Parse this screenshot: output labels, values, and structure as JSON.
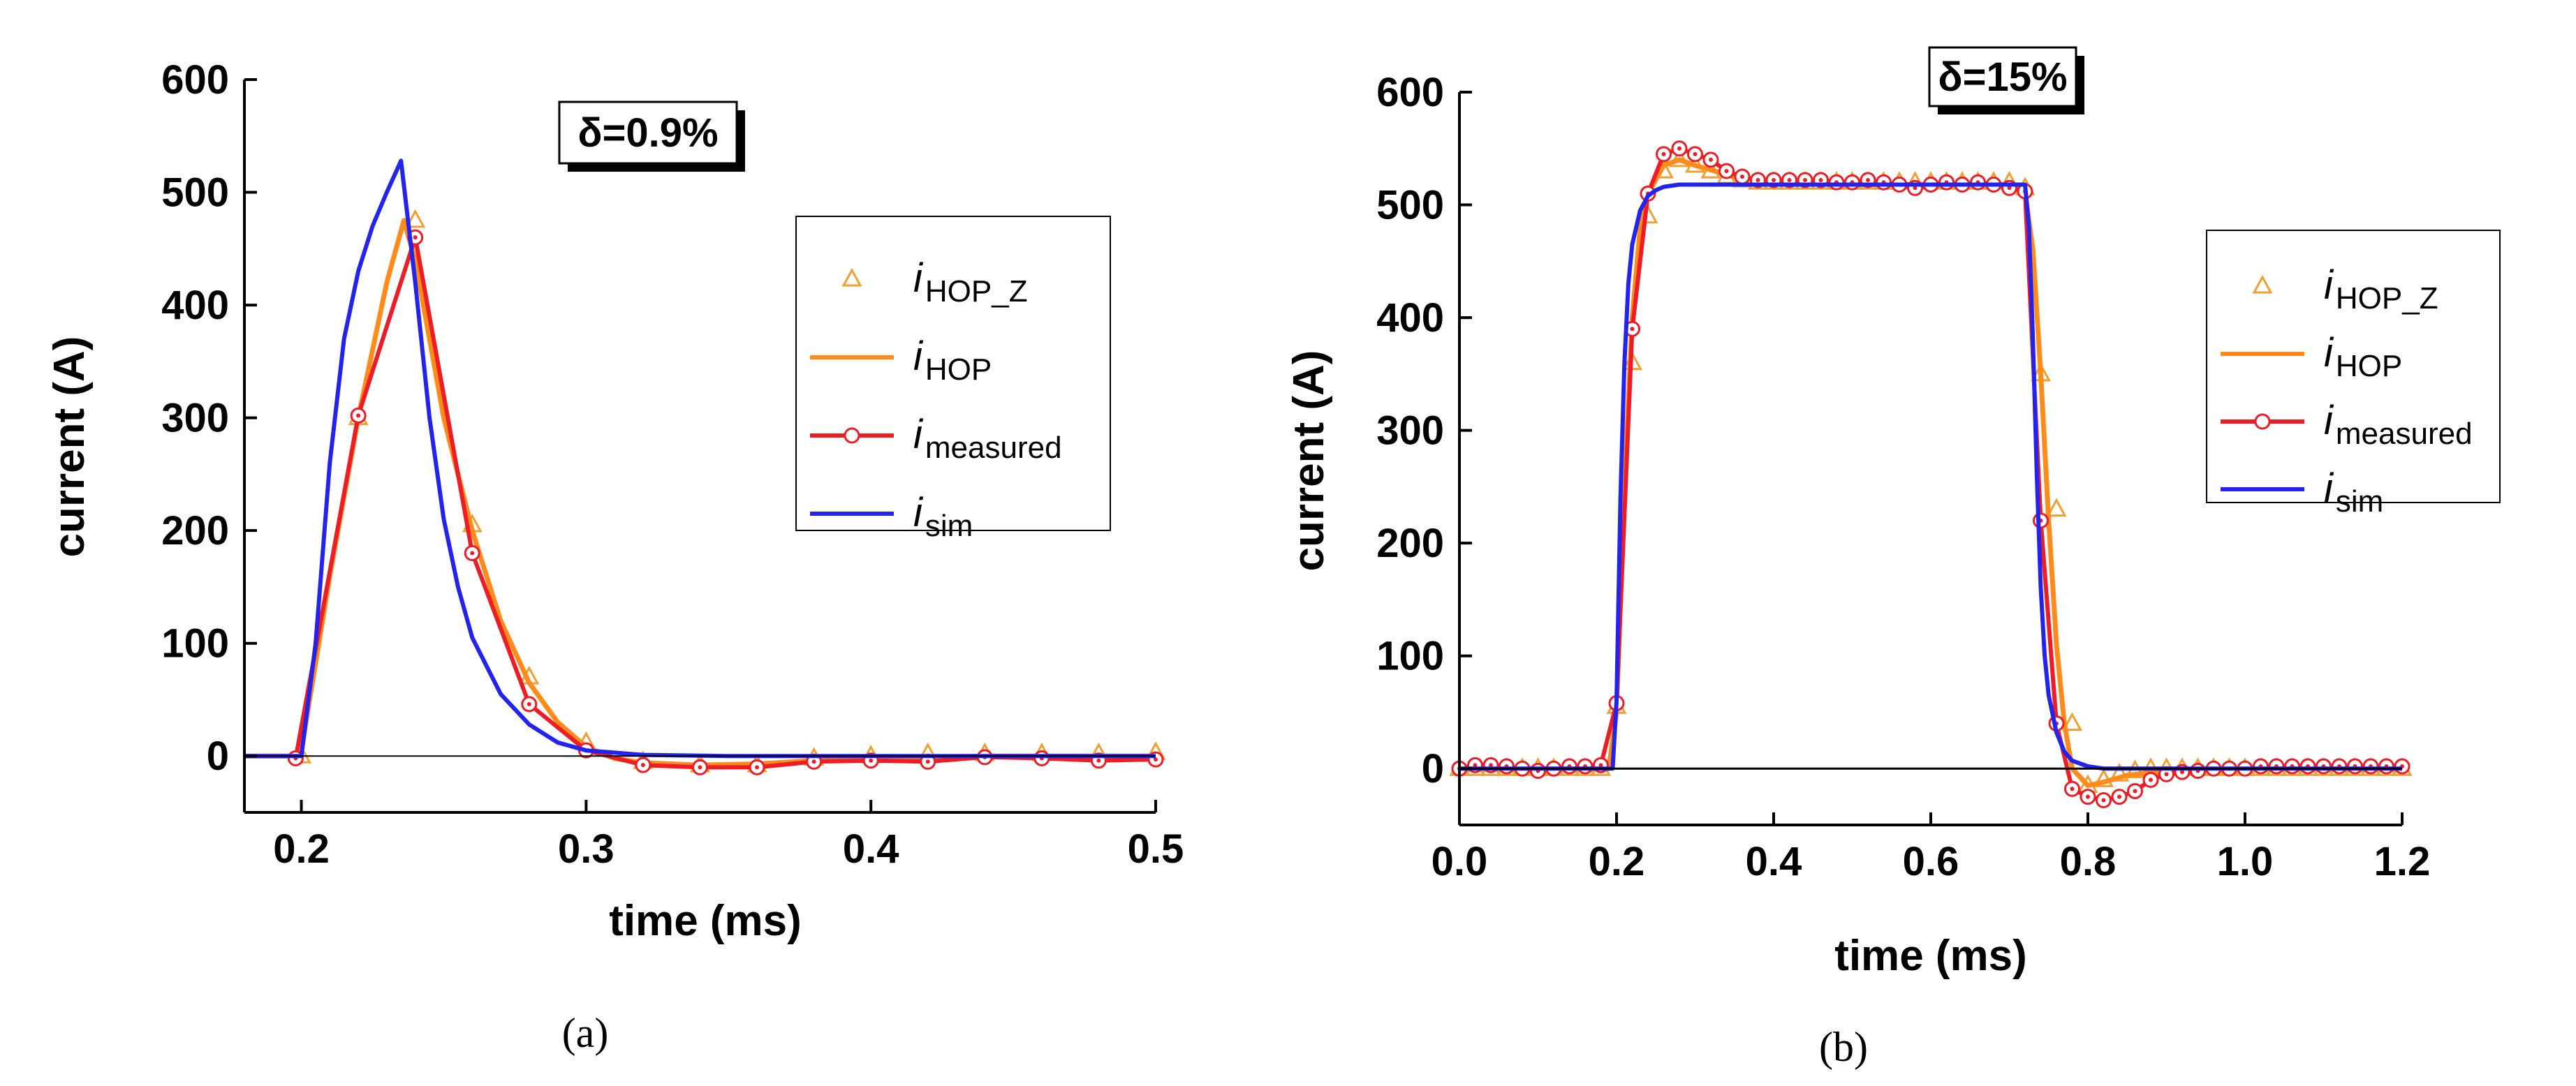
{
  "colors": {
    "hop_z": "#f0a030",
    "hop": "#ff8c1a",
    "measured": "#ee1c24",
    "sim": "#2323ee",
    "axis": "#000000"
  },
  "chart_data": [
    {
      "type": "line",
      "caption": "(a)",
      "annotation": "δ=0.9%",
      "xlabel": "time (ms)",
      "ylabel": "current (A)",
      "xlim": [
        0.18,
        0.5
      ],
      "ylim": [
        -50,
        600
      ],
      "xticks": [
        0.2,
        0.3,
        0.4,
        0.5
      ],
      "xtick_labels": [
        "0.2",
        "0.3",
        "0.4",
        "0.5"
      ],
      "yticks": [
        0,
        100,
        200,
        300,
        400,
        500,
        600
      ],
      "ytick_labels": [
        "0",
        "100",
        "200",
        "300",
        "400",
        "500",
        "600"
      ],
      "legend_position": "right",
      "series": [
        {
          "name": "iHOP_Z",
          "label_main": "i",
          "label_sub": "HOP_Z",
          "marker": "triangle",
          "line": false,
          "x": [
            0.2,
            0.22,
            0.24,
            0.26,
            0.28,
            0.3,
            0.32,
            0.34,
            0.36,
            0.38,
            0.4,
            0.42,
            0.44,
            0.46,
            0.48,
            0.5
          ],
          "y": [
            0,
            300,
            475,
            205,
            70,
            12,
            -5,
            -8,
            -8,
            -2,
            0,
            2,
            2,
            2,
            2,
            3
          ]
        },
        {
          "name": "iHOP",
          "label_main": "i",
          "label_sub": "HOP",
          "marker": "none",
          "line": true,
          "x": [
            0.18,
            0.198,
            0.2,
            0.21,
            0.22,
            0.23,
            0.236,
            0.24,
            0.25,
            0.26,
            0.27,
            0.28,
            0.29,
            0.3,
            0.31,
            0.32,
            0.34,
            0.36,
            0.38,
            0.4,
            0.42,
            0.44,
            0.46,
            0.48,
            0.5
          ],
          "y": [
            0,
            0,
            5,
            160,
            300,
            420,
            475,
            440,
            300,
            200,
            120,
            65,
            30,
            8,
            -2,
            -6,
            -8,
            -7,
            -4,
            -2,
            -1,
            0,
            0,
            0,
            0
          ]
        },
        {
          "name": "imeasured",
          "label_main": "i",
          "label_sub": "measured",
          "marker": "circle",
          "line": true,
          "x": [
            0.198,
            0.22,
            0.24,
            0.26,
            0.28,
            0.3,
            0.32,
            0.34,
            0.36,
            0.38,
            0.4,
            0.42,
            0.44,
            0.46,
            0.48,
            0.5
          ],
          "y": [
            -2,
            302,
            460,
            180,
            46,
            5,
            -8,
            -10,
            -10,
            -5,
            -4,
            -5,
            -1,
            -2,
            -4,
            -3
          ]
        },
        {
          "name": "isim",
          "label_main": "i",
          "label_sub": "sim",
          "marker": "none",
          "line": true,
          "x": [
            0.18,
            0.2,
            0.205,
            0.21,
            0.215,
            0.22,
            0.225,
            0.23,
            0.235,
            0.24,
            0.245,
            0.25,
            0.255,
            0.26,
            0.27,
            0.28,
            0.29,
            0.3,
            0.32,
            0.35,
            0.4,
            0.45,
            0.5
          ],
          "y": [
            0,
            0,
            100,
            260,
            370,
            430,
            470,
            500,
            528,
            420,
            300,
            210,
            150,
            105,
            55,
            28,
            12,
            5,
            1,
            0,
            0,
            0,
            0
          ]
        }
      ]
    },
    {
      "type": "line",
      "caption": "(b)",
      "annotation": "δ=15%",
      "xlabel": "time (ms)",
      "ylabel": "current (A)",
      "xlim": [
        0.0,
        1.2
      ],
      "ylim": [
        -50,
        600
      ],
      "xticks": [
        0.0,
        0.2,
        0.4,
        0.6,
        0.8,
        1.0,
        1.2
      ],
      "xtick_labels": [
        "0.0",
        "0.2",
        "0.4",
        "0.6",
        "0.8",
        "1.0",
        "1.2"
      ],
      "yticks": [
        0,
        100,
        200,
        300,
        400,
        500,
        600
      ],
      "ytick_labels": [
        "0",
        "100",
        "200",
        "300",
        "400",
        "500",
        "600"
      ],
      "legend_position": "right",
      "series": [
        {
          "name": "iHOP_Z",
          "label_main": "i",
          "label_sub": "HOP_Z",
          "marker": "triangle",
          "line": false,
          "x": [
            0.0,
            0.02,
            0.04,
            0.06,
            0.08,
            0.1,
            0.12,
            0.14,
            0.16,
            0.18,
            0.2,
            0.22,
            0.24,
            0.26,
            0.28,
            0.3,
            0.32,
            0.34,
            0.36,
            0.38,
            0.4,
            0.42,
            0.44,
            0.46,
            0.48,
            0.5,
            0.52,
            0.54,
            0.56,
            0.58,
            0.6,
            0.62,
            0.64,
            0.66,
            0.68,
            0.7,
            0.72,
            0.74,
            0.76,
            0.78,
            0.8,
            0.82,
            0.84,
            0.86,
            0.88,
            0.9,
            0.92,
            0.94,
            0.96,
            0.98,
            1.0,
            1.02,
            1.04,
            1.06,
            1.08,
            1.1,
            1.12,
            1.14,
            1.16,
            1.18,
            1.2
          ],
          "y": [
            0,
            0,
            0,
            0,
            0,
            0,
            0,
            0,
            0,
            0,
            55,
            360,
            490,
            530,
            540,
            535,
            530,
            525,
            522,
            520,
            520,
            520,
            520,
            520,
            520,
            520,
            520,
            520,
            520,
            520,
            520,
            520,
            520,
            520,
            520,
            520,
            515,
            350,
            230,
            40,
            -15,
            -10,
            -5,
            -2,
            0,
            0,
            0,
            0,
            0,
            0,
            0,
            0,
            0,
            0,
            0,
            0,
            0,
            0,
            0,
            0,
            0
          ]
        },
        {
          "name": "iHOP",
          "label_main": "i",
          "label_sub": "HOP",
          "marker": "none",
          "line": true,
          "x": [
            0.0,
            0.19,
            0.2,
            0.21,
            0.22,
            0.23,
            0.24,
            0.26,
            0.28,
            0.3,
            0.35,
            0.4,
            0.5,
            0.6,
            0.7,
            0.72,
            0.73,
            0.74,
            0.75,
            0.76,
            0.77,
            0.78,
            0.8,
            0.82,
            0.85,
            0.9,
            1.0,
            1.2
          ],
          "y": [
            0,
            0,
            50,
            250,
            400,
            480,
            510,
            535,
            540,
            535,
            525,
            520,
            518,
            518,
            518,
            512,
            460,
            350,
            220,
            110,
            40,
            0,
            -15,
            -12,
            -6,
            -2,
            0,
            0
          ]
        },
        {
          "name": "imeasured",
          "label_main": "i",
          "label_sub": "measured",
          "marker": "circle",
          "line": true,
          "x": [
            0.0,
            0.02,
            0.04,
            0.06,
            0.08,
            0.1,
            0.12,
            0.14,
            0.16,
            0.18,
            0.2,
            0.22,
            0.24,
            0.26,
            0.28,
            0.3,
            0.32,
            0.34,
            0.36,
            0.38,
            0.4,
            0.42,
            0.44,
            0.46,
            0.48,
            0.5,
            0.52,
            0.54,
            0.56,
            0.58,
            0.6,
            0.62,
            0.64,
            0.66,
            0.68,
            0.7,
            0.72,
            0.74,
            0.76,
            0.78,
            0.8,
            0.82,
            0.84,
            0.86,
            0.88,
            0.9,
            0.92,
            0.94,
            0.96,
            0.98,
            1.0,
            1.02,
            1.04,
            1.06,
            1.08,
            1.1,
            1.12,
            1.14,
            1.16,
            1.18,
            1.2
          ],
          "y": [
            0,
            3,
            3,
            2,
            0,
            -2,
            0,
            2,
            2,
            3,
            58,
            390,
            510,
            545,
            550,
            545,
            540,
            530,
            525,
            522,
            522,
            522,
            522,
            522,
            520,
            520,
            522,
            520,
            518,
            515,
            518,
            520,
            518,
            520,
            518,
            515,
            512,
            220,
            40,
            -18,
            -25,
            -28,
            -25,
            -20,
            -10,
            -5,
            -3,
            -2,
            0,
            0,
            0,
            2,
            2,
            2,
            2,
            2,
            2,
            2,
            2,
            2,
            2
          ]
        },
        {
          "name": "isim",
          "label_main": "i",
          "label_sub": "sim",
          "marker": "none",
          "line": true,
          "x": [
            0.0,
            0.195,
            0.2,
            0.205,
            0.21,
            0.215,
            0.22,
            0.23,
            0.24,
            0.25,
            0.26,
            0.28,
            0.3,
            0.4,
            0.5,
            0.6,
            0.7,
            0.72,
            0.725,
            0.73,
            0.735,
            0.74,
            0.745,
            0.75,
            0.76,
            0.77,
            0.78,
            0.8,
            0.82,
            0.9,
            1.0,
            1.2
          ],
          "y": [
            0,
            0,
            60,
            240,
            360,
            430,
            465,
            495,
            508,
            513,
            516,
            518,
            518,
            518,
            518,
            518,
            518,
            518,
            480,
            380,
            260,
            160,
            100,
            65,
            32,
            15,
            7,
            2,
            0,
            0,
            0,
            0
          ]
        }
      ]
    }
  ]
}
